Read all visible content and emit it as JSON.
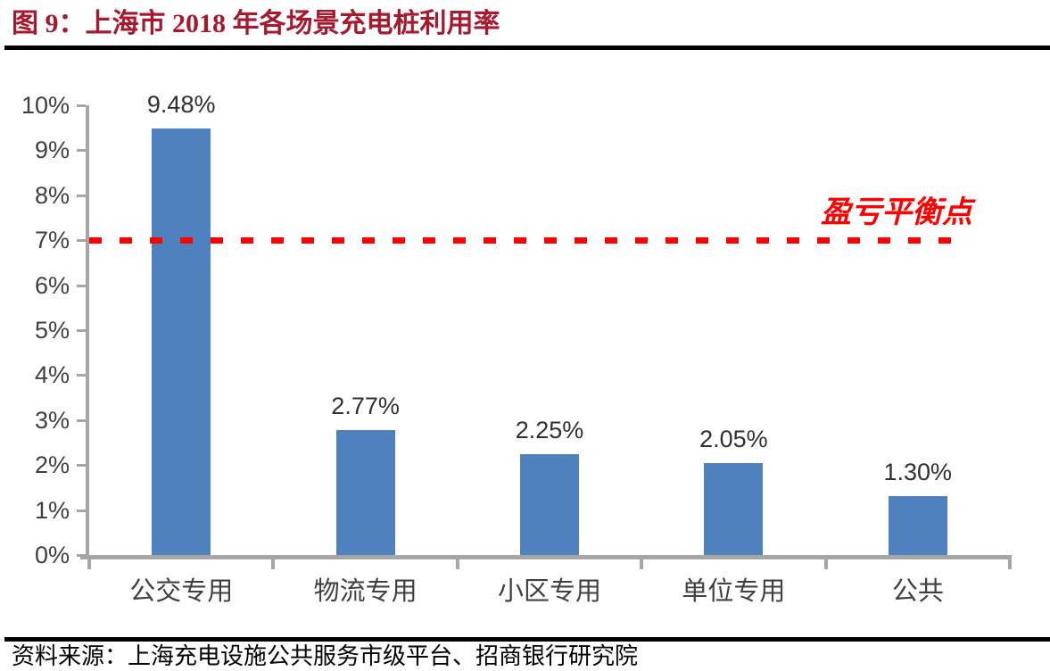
{
  "title": "图 9：上海市 2018 年各场景充电桩利用率",
  "source": "资料来源：上海充电设施公共服务市级平台、招商银行研究院",
  "colors": {
    "title_red": "#A6192E",
    "bar_blue": "#4E81BD",
    "axis_gray": "#A6A6A6",
    "tick_text": "#404040",
    "value_text": "#303030",
    "breakeven_red": "#FE0000",
    "rule_black": "#000000"
  },
  "chart_data": {
    "type": "bar",
    "title": "图 9：上海市 2018 年各场景充电桩利用率",
    "categories": [
      "公交专用",
      "物流专用",
      "小区专用",
      "单位专用",
      "公共"
    ],
    "values": [
      9.48,
      2.77,
      2.25,
      2.05,
      1.3
    ],
    "value_labels": [
      "9.48%",
      "2.77%",
      "2.25%",
      "2.05%",
      "1.30%"
    ],
    "xlabel": "",
    "ylabel": "",
    "ylim": [
      0,
      10
    ],
    "ytick_labels": [
      "0%",
      "1%",
      "2%",
      "3%",
      "4%",
      "5%",
      "6%",
      "7%",
      "8%",
      "9%",
      "10%"
    ],
    "grid": false,
    "legend": false,
    "reference_line": {
      "value": 7,
      "label": "盈亏平衡点",
      "style": "dashed",
      "color": "#FE0000"
    }
  }
}
